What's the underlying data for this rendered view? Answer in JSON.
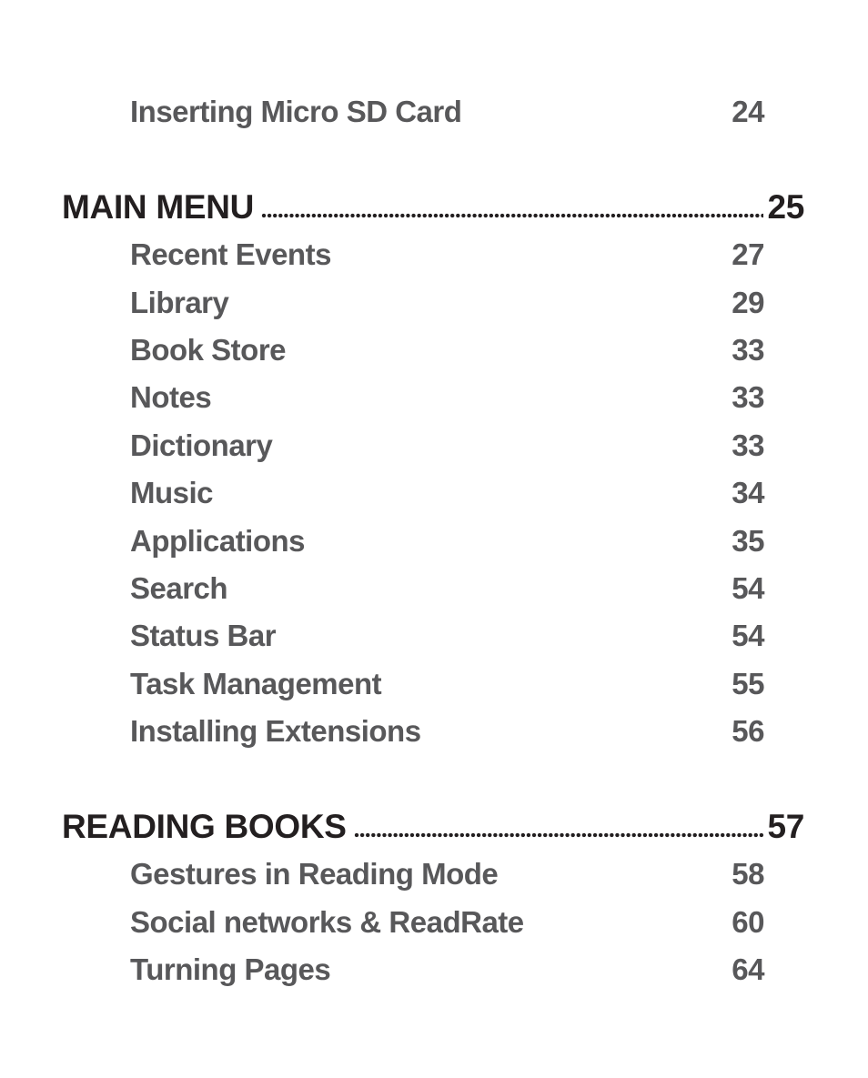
{
  "page": {
    "background_color": "#ffffff",
    "header_text_color": "#231f20",
    "item_text_color": "#58585a",
    "dot_leader_color": "#231f20"
  },
  "toc": {
    "leading_items": [
      {
        "label": "Inserting Micro SD Card",
        "page": "24"
      }
    ],
    "sections": [
      {
        "title": "MAIN MENU",
        "page": "25",
        "items": [
          {
            "label": "Recent Events",
            "page": "27"
          },
          {
            "label": "Library",
            "page": "29"
          },
          {
            "label": "Book Store",
            "page": "33"
          },
          {
            "label": "Notes",
            "page": "33"
          },
          {
            "label": "Dictionary",
            "page": "33"
          },
          {
            "label": "Music",
            "page": "34"
          },
          {
            "label": "Applications",
            "page": "35"
          },
          {
            "label": "Search",
            "page": "54"
          },
          {
            "label": "Status Bar",
            "page": "54"
          },
          {
            "label": "Task Management",
            "page": "55"
          },
          {
            "label": "Installing Extensions",
            "page": "56"
          }
        ]
      },
      {
        "title": "READING BOOKS",
        "page": "57",
        "items": [
          {
            "label": "Gestures in Reading Mode",
            "page": "58"
          },
          {
            "label": "Social networks & ReadRate",
            "page": "60"
          },
          {
            "label": "Turning Pages",
            "page": "64"
          }
        ]
      }
    ]
  }
}
